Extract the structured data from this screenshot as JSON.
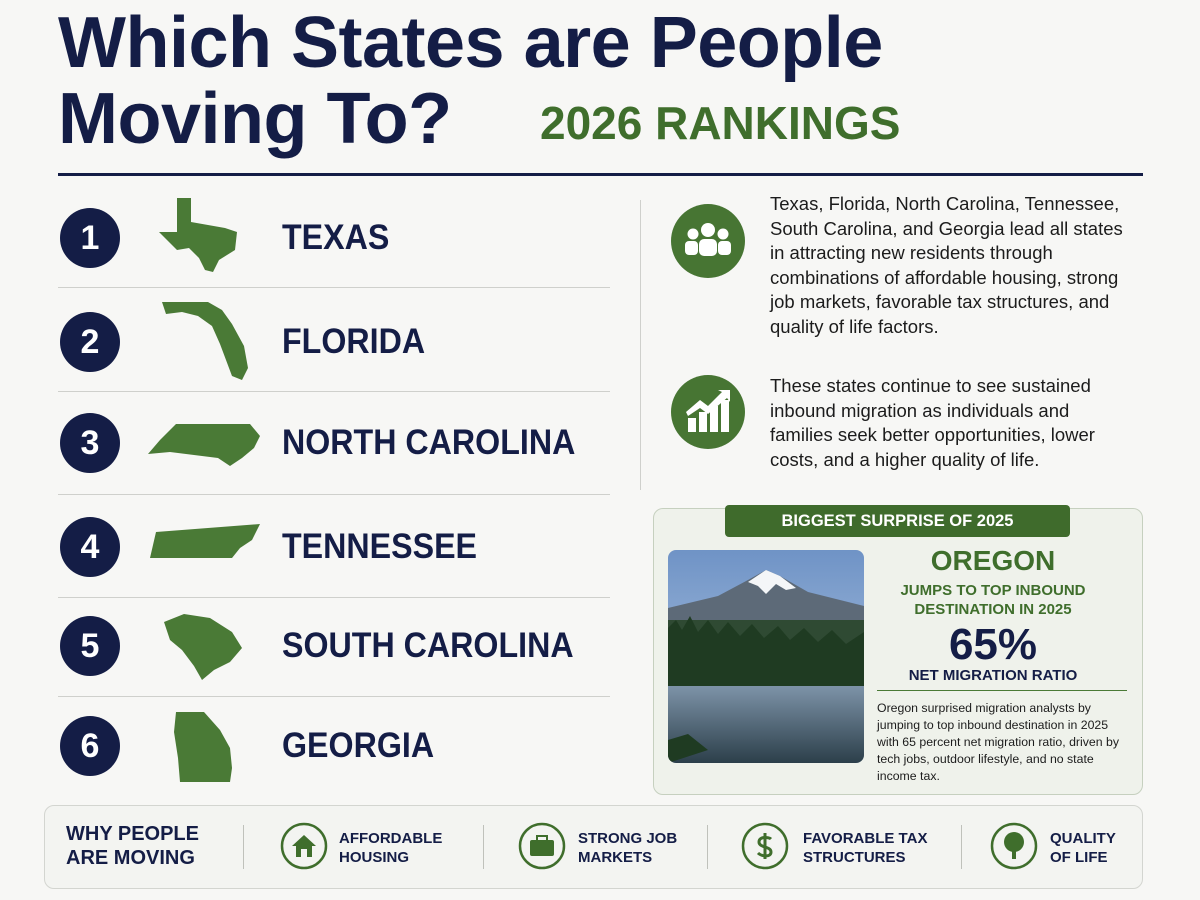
{
  "header": {
    "title_line1": "Which States are People",
    "title_line2": "Moving To?",
    "badge": "2026 RANKINGS"
  },
  "rankings": [
    {
      "rank": 1,
      "state": "TEXAS"
    },
    {
      "rank": 2,
      "state": "FLORIDA"
    },
    {
      "rank": 3,
      "state": "NORTH CAROLINA"
    },
    {
      "rank": 4,
      "state": "TENNESSEE"
    },
    {
      "rank": 5,
      "state": "SOUTH CAROLINA"
    },
    {
      "rank": 6,
      "state": "GEORGIA"
    }
  ],
  "summary": [
    "Texas, Florida, North Carolina, Tennessee, South Carolina, and Georgia lead all states in attracting new residents through combinations of affordable housing, strong job markets, favorable tax structures, and quality of life factors.",
    "These states continue to see sustained inbound migration as individuals and families seek better opportunities, lower costs, and a higher quality of life."
  ],
  "surprise": {
    "banner": "BIGGEST SURPRISE OF 2025",
    "state": "OREGON",
    "headline": "JUMPS TO TOP INBOUND DESTINATION IN 2025",
    "stat": "65%",
    "stat_label": "NET MIGRATION RATIO",
    "body": "Oregon surprised migration analysts by jumping to top inbound destination in 2025 with 65 percent net migration ratio, driven by tech jobs, outdoor lifestyle, and no state income tax."
  },
  "footer": {
    "heading": "WHY PEOPLE ARE MOVING",
    "reasons": [
      "AFFORDABLE HOUSING",
      "STRONG JOB MARKETS",
      "FAVORABLE TAX STRUCTURES",
      "QUALITY OF LIFE"
    ]
  }
}
